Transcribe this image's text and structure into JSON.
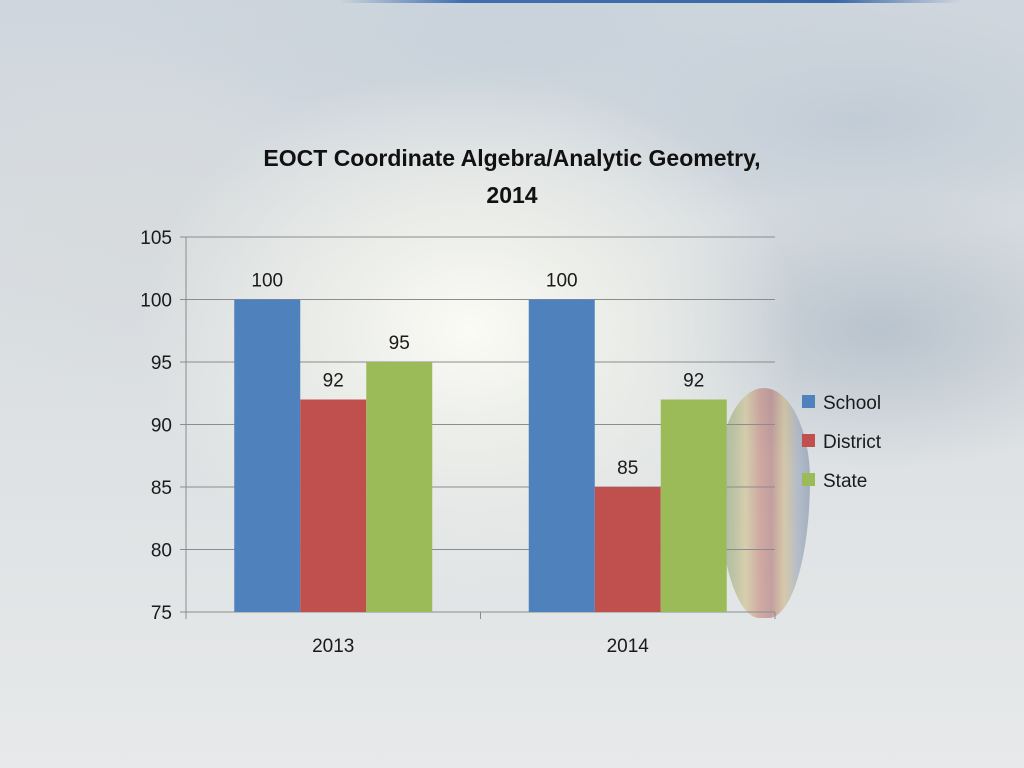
{
  "chart_data": {
    "type": "bar",
    "title": "EOCT Coordinate Algebra/Analytic Geometry,",
    "title_line2": "2014",
    "categories": [
      "2013",
      "2014"
    ],
    "series": [
      {
        "name": "School",
        "color": "#4f81bd",
        "values": [
          100,
          100
        ]
      },
      {
        "name": "District",
        "color": "#c0504d",
        "values": [
          92,
          85
        ]
      },
      {
        "name": "State",
        "color": "#9bbb59",
        "values": [
          95,
          92
        ]
      }
    ],
    "ylim": [
      75,
      105
    ],
    "yticks": [
      75,
      80,
      85,
      90,
      95,
      100,
      105
    ],
    "grid": true,
    "legend_position": "right",
    "data_labels": true
  }
}
